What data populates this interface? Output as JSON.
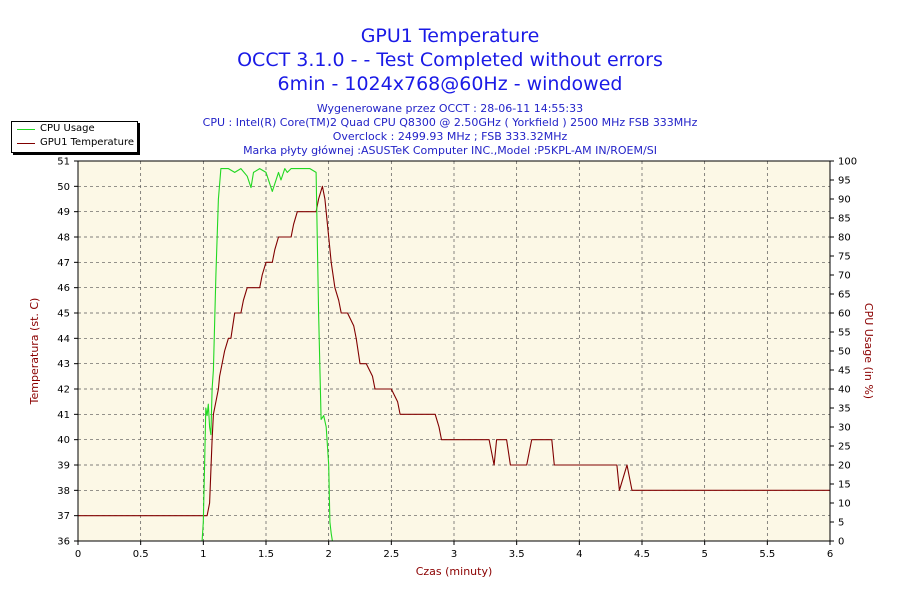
{
  "header": {
    "title_lines": [
      "GPU1 Temperature",
      "OCCT 3.1.0 -   - Test Completed without errors",
      "6min - 1024x768@60Hz - windowed"
    ],
    "info_lines": [
      "Wygenerowane przez OCCT : 28-06-11 14:55:33",
      "CPU : Intel(R) Core(TM)2 Quad CPU Q8300 @ 2.50GHz ( Yorkfield ) 2500 MHz FSB 333MHz",
      "Overclock : 2499.93 MHz ; FSB 333.32MHz",
      "Marka płyty głównej :ASUSTeK Computer INC.,Model :P5KPL-AM IN/ROEM/SI"
    ]
  },
  "legend": {
    "items": [
      {
        "label": "CPU Usage",
        "color": "#22d822"
      },
      {
        "label": "GPU1 Temperature",
        "color": "#800000"
      }
    ]
  },
  "chart_data": {
    "type": "line",
    "xlabel": "Czas (minuty)",
    "ylabel": "Temperatura (st. C)",
    "y2label": "CPU Usage (in %)",
    "xlim": [
      0,
      6
    ],
    "ylim": [
      36,
      51
    ],
    "y2lim": [
      0,
      100
    ],
    "x_ticks": [
      "0",
      "0.5",
      "1",
      "1.5",
      "2",
      "2.5",
      "3",
      "3.5",
      "4",
      "4.5",
      "5",
      "5.5",
      "6"
    ],
    "y_ticks": [
      "36",
      "37",
      "38",
      "39",
      "40",
      "41",
      "42",
      "43",
      "44",
      "45",
      "46",
      "47",
      "48",
      "49",
      "50",
      "51"
    ],
    "y2_ticks": [
      "0",
      "5",
      "10",
      "15",
      "20",
      "25",
      "30",
      "35",
      "40",
      "45",
      "50",
      "55",
      "60",
      "65",
      "70",
      "75",
      "80",
      "85",
      "90",
      "95",
      "100"
    ],
    "grid": true,
    "plot_background": "#fcf8e6",
    "series": [
      {
        "name": "GPU1 Temperature",
        "axis": "left",
        "color": "#800000",
        "x": [
          0,
          1.0,
          1.03,
          1.05,
          1.07,
          1.08,
          1.1,
          1.12,
          1.13,
          1.15,
          1.17,
          1.2,
          1.22,
          1.25,
          1.3,
          1.32,
          1.35,
          1.45,
          1.47,
          1.5,
          1.55,
          1.57,
          1.6,
          1.7,
          1.72,
          1.75,
          1.8,
          1.82,
          1.85,
          1.9,
          1.92,
          1.95,
          1.97,
          2.0,
          2.02,
          2.05,
          2.08,
          2.1,
          2.15,
          2.2,
          2.22,
          2.25,
          2.3,
          2.35,
          2.37,
          2.4,
          2.5,
          2.55,
          2.57,
          2.6,
          2.85,
          2.88,
          2.9,
          3.05,
          3.15,
          3.28,
          3.32,
          3.34,
          3.37,
          3.42,
          3.45,
          3.48,
          3.52,
          3.58,
          3.62,
          3.65,
          3.72,
          3.78,
          3.8,
          3.85,
          4.0,
          4.25,
          4.3,
          4.32,
          4.35,
          4.38,
          4.4,
          4.42,
          4.45,
          6.0
        ],
        "y": [
          37,
          37,
          37,
          37.5,
          40,
          41,
          41.5,
          42,
          42.5,
          43,
          43.5,
          44,
          44,
          45,
          45,
          45.5,
          46,
          46,
          46.5,
          47,
          47,
          47.5,
          48,
          48,
          48.5,
          49,
          49,
          49,
          49,
          49,
          49.5,
          50,
          49.5,
          48,
          47,
          46,
          45.5,
          45,
          45,
          44.5,
          44,
          43,
          43,
          42.5,
          42,
          42,
          42,
          41.5,
          41,
          41,
          41,
          40.5,
          40,
          40,
          40,
          40,
          39,
          40,
          40,
          40,
          39,
          39,
          39,
          39,
          40,
          40,
          40,
          40,
          39,
          39,
          39,
          39,
          39,
          38,
          38.5,
          39,
          38.5,
          38,
          38,
          38
        ]
      },
      {
        "name": "CPU Usage",
        "axis": "right",
        "color": "#22d822",
        "x": [
          0.99,
          1.0,
          1.01,
          1.02,
          1.03,
          1.04,
          1.05,
          1.06,
          1.07,
          1.08,
          1.1,
          1.12,
          1.14,
          1.15,
          1.17,
          1.2,
          1.25,
          1.3,
          1.35,
          1.38,
          1.4,
          1.45,
          1.5,
          1.55,
          1.6,
          1.62,
          1.65,
          1.67,
          1.7,
          1.75,
          1.8,
          1.85,
          1.9,
          1.92,
          1.94,
          1.96,
          1.98,
          2.0,
          2.01,
          2.02,
          2.03
        ],
        "y": [
          0,
          5,
          20,
          35,
          33,
          36,
          30,
          28,
          40,
          45,
          70,
          90,
          98,
          98,
          98,
          98,
          97,
          98,
          96,
          93,
          97,
          98,
          97,
          92,
          97,
          95,
          98,
          97,
          98,
          98,
          98,
          98,
          97,
          60,
          32,
          33,
          30,
          20,
          5,
          2,
          0
        ]
      }
    ]
  }
}
